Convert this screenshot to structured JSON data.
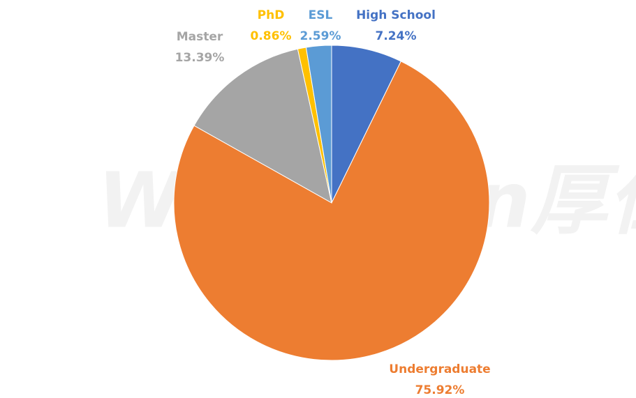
{
  "chart_data": {
    "type": "pie",
    "watermark": "WholeRen厚仁",
    "categories": [
      "High School",
      "Undergraduate",
      "Master",
      "PhD",
      "ESL"
    ],
    "values": [
      7.24,
      75.92,
      13.39,
      0.86,
      2.59
    ],
    "value_labels": [
      "7.24%",
      "75.92%",
      "13.39%",
      "0.86%",
      "2.59%"
    ],
    "colors": [
      "#4472c4",
      "#ed7d31",
      "#a5a5a5",
      "#ffc000",
      "#5b9bd5"
    ]
  }
}
